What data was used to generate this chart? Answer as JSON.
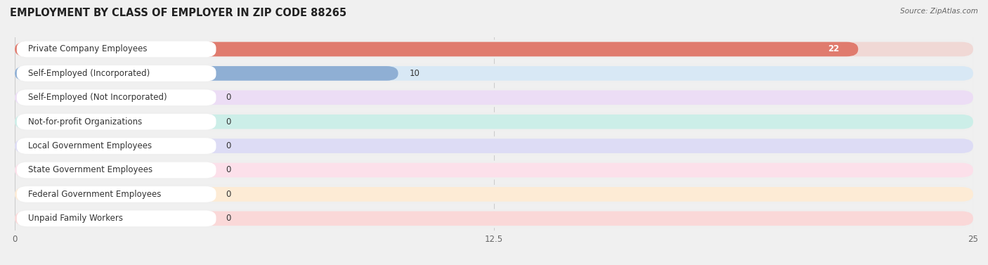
{
  "title": "EMPLOYMENT BY CLASS OF EMPLOYER IN ZIP CODE 88265",
  "source": "Source: ZipAtlas.com",
  "categories": [
    "Private Company Employees",
    "Self-Employed (Incorporated)",
    "Self-Employed (Not Incorporated)",
    "Not-for-profit Organizations",
    "Local Government Employees",
    "State Government Employees",
    "Federal Government Employees",
    "Unpaid Family Workers"
  ],
  "values": [
    22,
    10,
    0,
    0,
    0,
    0,
    0,
    0
  ],
  "bar_colors": [
    "#e07b6e",
    "#8fafd4",
    "#c9a8d4",
    "#6bbfb5",
    "#b0aee0",
    "#f5a0b8",
    "#f5c99a",
    "#f0a8a8"
  ],
  "bar_bg_colors": [
    "#f0d8d5",
    "#d8e8f5",
    "#ecddf5",
    "#cceee8",
    "#dddcf5",
    "#fce0ea",
    "#fdebd5",
    "#fad8d8"
  ],
  "row_bg_color": "#efefef",
  "xlim": [
    0,
    25
  ],
  "xticks": [
    0,
    12.5,
    25
  ],
  "background_color": "#f0f0f0",
  "title_fontsize": 10.5,
  "label_fontsize": 8.5,
  "value_fontsize": 8.5
}
